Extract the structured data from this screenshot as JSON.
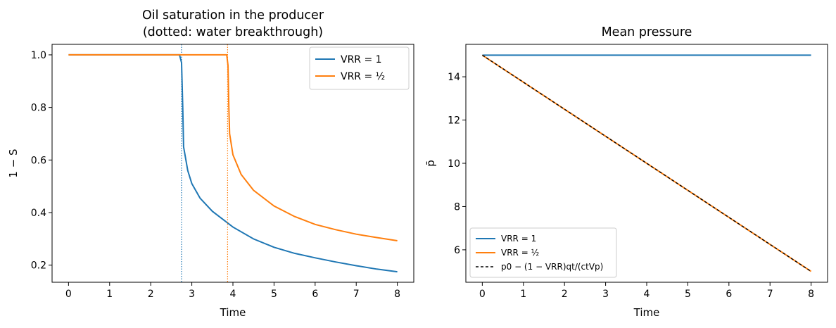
{
  "chart_data": [
    {
      "type": "line",
      "title_lines": [
        "Oil saturation in the producer",
        "(dotted: water breakthrough)"
      ],
      "xlabel": "Time",
      "ylabel": "1 − S",
      "xlim": [
        -0.4,
        8.4
      ],
      "ylim": [
        0.135,
        1.04
      ],
      "xticks": [
        0,
        1,
        2,
        3,
        4,
        5,
        6,
        7,
        8
      ],
      "yticks": [
        0.2,
        0.4,
        0.6,
        0.8,
        1.0
      ],
      "ytick_labels": [
        "0.2",
        "0.4",
        "0.6",
        "0.8",
        "1.0"
      ],
      "grid": false,
      "legend_position": "upper right",
      "series": [
        {
          "name": "VRR = 1",
          "color": "#1f77b4",
          "breakthrough": 2.75,
          "x": [
            0,
            2.5,
            2.7,
            2.75,
            2.78,
            2.8,
            2.9,
            3.0,
            3.2,
            3.5,
            4.0,
            4.5,
            5.0,
            5.5,
            6.0,
            6.5,
            7.0,
            7.5,
            8.0
          ],
          "y": [
            1.0,
            1.0,
            1.0,
            0.97,
            0.8,
            0.65,
            0.56,
            0.51,
            0.455,
            0.405,
            0.345,
            0.3,
            0.268,
            0.245,
            0.228,
            0.212,
            0.198,
            0.185,
            0.175
          ]
        },
        {
          "name": "VRR = ½",
          "color": "#ff7f0e",
          "breakthrough": 3.87,
          "x": [
            0,
            3.5,
            3.85,
            3.88,
            3.9,
            3.92,
            4.0,
            4.2,
            4.5,
            5.0,
            5.5,
            6.0,
            6.5,
            7.0,
            7.5,
            8.0
          ],
          "y": [
            1.0,
            1.0,
            1.0,
            0.96,
            0.8,
            0.7,
            0.62,
            0.545,
            0.485,
            0.425,
            0.385,
            0.355,
            0.335,
            0.318,
            0.305,
            0.293
          ]
        }
      ]
    },
    {
      "type": "line",
      "title_lines": [
        "Mean pressure"
      ],
      "xlabel": "Time",
      "ylabel": "p̄",
      "xlim": [
        -0.4,
        8.4
      ],
      "ylim": [
        4.5,
        15.5
      ],
      "xticks": [
        0,
        1,
        2,
        3,
        4,
        5,
        6,
        7,
        8
      ],
      "yticks": [
        6,
        8,
        10,
        12,
        14
      ],
      "ytick_labels": [
        "6",
        "8",
        "10",
        "12",
        "14"
      ],
      "grid": false,
      "legend_position": "lower left",
      "series": [
        {
          "name": "VRR = 1",
          "color": "#1f77b4",
          "x": [
            0,
            8
          ],
          "y": [
            15,
            15
          ]
        },
        {
          "name": "VRR = ½",
          "color": "#ff7f0e",
          "x": [
            0,
            8
          ],
          "y": [
            15,
            5
          ]
        },
        {
          "name": "p0 − (1 − VRR)qt/(ctVp)",
          "color": "#000000",
          "dashed": true,
          "x": [
            0,
            8
          ],
          "y": [
            15,
            5
          ]
        }
      ]
    }
  ]
}
